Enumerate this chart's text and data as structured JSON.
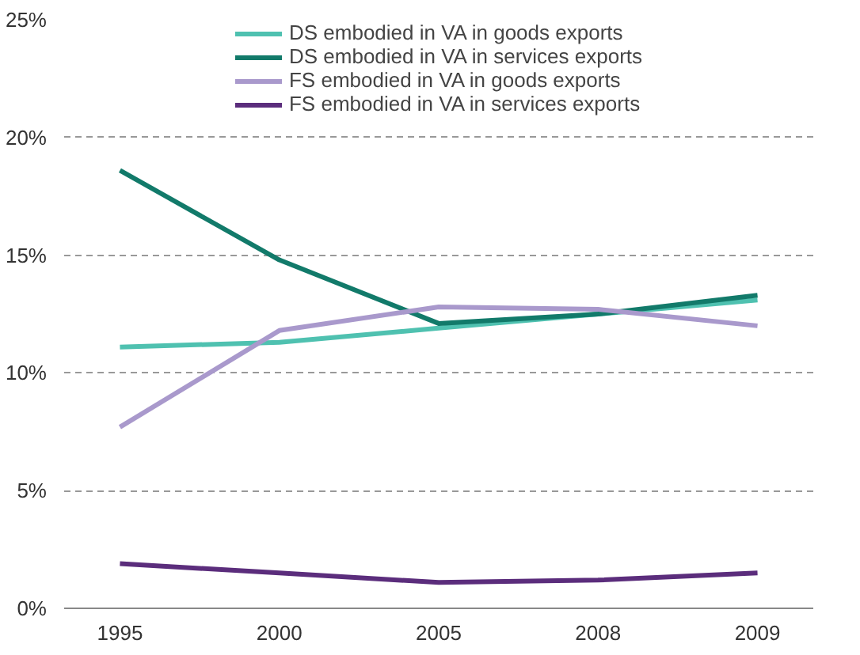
{
  "chart_data": {
    "type": "line",
    "categories": [
      "1995",
      "2000",
      "2005",
      "2008",
      "2009"
    ],
    "series": [
      {
        "name": "DS embodied in VA in goods exports",
        "color": "#4fc1b0",
        "values": [
          11.1,
          11.3,
          11.9,
          12.5,
          13.1
        ]
      },
      {
        "name": "DS embodied in VA in services exports",
        "color": "#127a6a",
        "values": [
          18.6,
          14.8,
          12.1,
          12.5,
          13.3
        ]
      },
      {
        "name": "FS embodied in VA in goods exports",
        "color": "#a999cc",
        "values": [
          7.7,
          11.8,
          12.8,
          12.7,
          12.0
        ]
      },
      {
        "name": "FS embodied in VA in services exports",
        "color": "#5b2d7c",
        "values": [
          1.9,
          1.5,
          1.1,
          1.2,
          1.5
        ]
      }
    ],
    "ylim": [
      0,
      25
    ],
    "yticks": [
      {
        "value": 0,
        "label": "0%"
      },
      {
        "value": 5,
        "label": "5%"
      },
      {
        "value": 10,
        "label": "10%"
      },
      {
        "value": 15,
        "label": "15%"
      },
      {
        "value": 20,
        "label": "20%"
      },
      {
        "value": 25,
        "label": "25%"
      }
    ],
    "grid": "y",
    "legend": "top",
    "marker": "none",
    "line_style": "solid"
  }
}
